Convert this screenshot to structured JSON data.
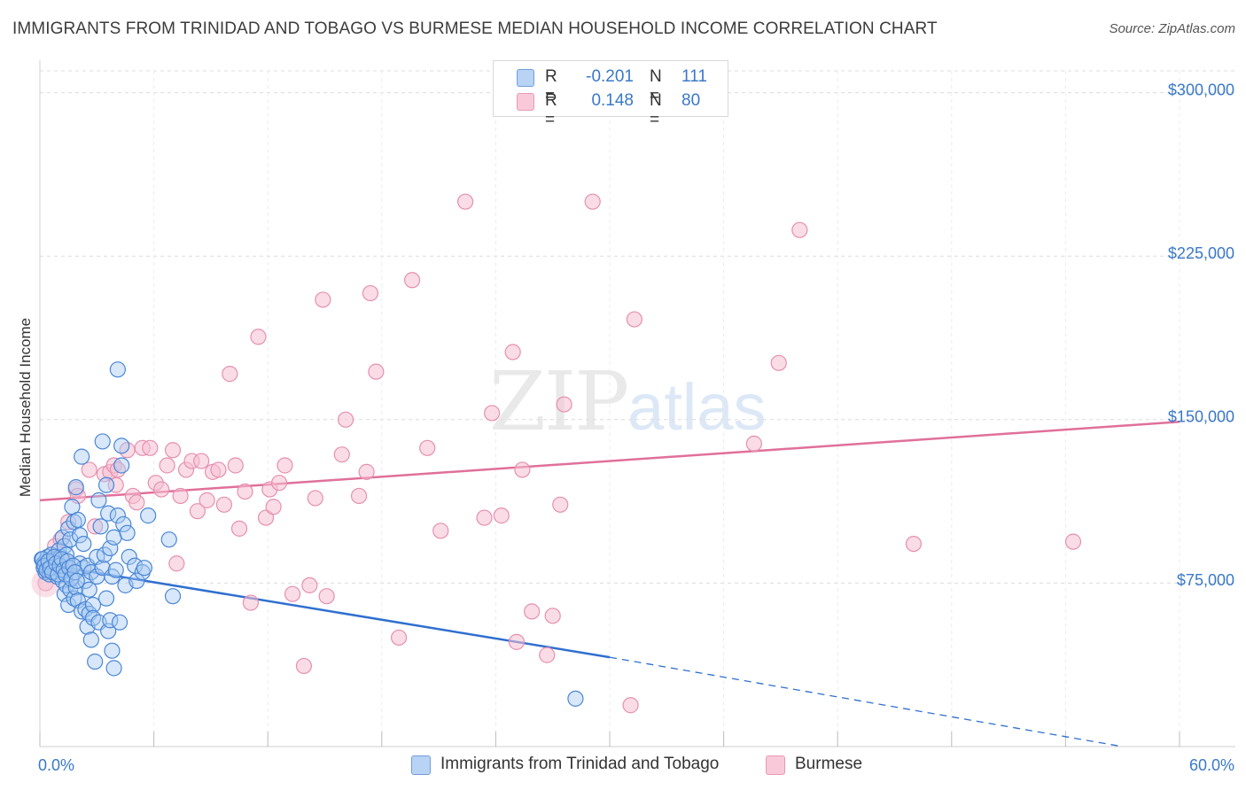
{
  "title": "IMMIGRANTS FROM TRINIDAD AND TOBAGO VS BURMESE MEDIAN HOUSEHOLD INCOME CORRELATION CHART",
  "source": "Source: ZipAtlas.com",
  "watermark": {
    "zip": "ZIP",
    "atlas": "atlas"
  },
  "legend": {
    "rows": [
      {
        "r_label": "R =",
        "r_value": "-0.201",
        "n_label": "N =",
        "n_value": "111"
      },
      {
        "r_label": "R =",
        "r_value": "0.148",
        "n_label": "N =",
        "n_value": "80"
      }
    ]
  },
  "bottom_legend": {
    "series_a": "Immigrants from Trinidad and Tobago",
    "series_b": "Burmese"
  },
  "colors": {
    "series_a_fill": "#a9c9f2",
    "series_a_stroke": "#4a87d6",
    "series_a_line": "#2f6fd0",
    "series_b_fill": "#f6bfd2",
    "series_b_stroke": "#e590b0",
    "series_b_line": "#e0709a",
    "axis_text": "#3a78c9",
    "grid": "#dcdcdc"
  },
  "chart_data": {
    "type": "scatter",
    "xlabel": "",
    "ylabel": "Median Household Income",
    "xlim": [
      0,
      60
    ],
    "ylim": [
      0,
      310000
    ],
    "x_tick_labels": [
      "0.0%",
      "60.0%"
    ],
    "y_ticks": [
      75000,
      150000,
      225000,
      300000
    ],
    "y_tick_labels": [
      "$75,000",
      "$150,000",
      "$225,000",
      "$300,000"
    ],
    "grid": true,
    "legend_position": "top-center",
    "series": [
      {
        "name": "Immigrants from Trinidad and Tobago",
        "r": -0.201,
        "n": 111,
        "trend": {
          "x": [
            0,
            30
          ],
          "y": [
            84000,
            41000
          ],
          "dashed_to": [
            57,
            0
          ]
        },
        "points": [
          [
            0.1,
            86000
          ],
          [
            0.2,
            84000
          ],
          [
            0.2,
            82000
          ],
          [
            0.3,
            85000
          ],
          [
            0.3,
            80000
          ],
          [
            0.4,
            87000
          ],
          [
            0.4,
            83000
          ],
          [
            0.5,
            81000
          ],
          [
            0.5,
            79000
          ],
          [
            0.6,
            88000
          ],
          [
            0.6,
            84000
          ],
          [
            0.7,
            85000
          ],
          [
            0.7,
            82000
          ],
          [
            0.8,
            80000
          ],
          [
            0.8,
            86000
          ],
          [
            0.9,
            83000
          ],
          [
            0.9,
            78000
          ],
          [
            1.0,
            90000
          ],
          [
            1.0,
            84000
          ],
          [
            1.1,
            87000
          ],
          [
            1.1,
            81000
          ],
          [
            1.2,
            96000
          ],
          [
            1.2,
            76000
          ],
          [
            1.3,
            92000
          ],
          [
            1.3,
            70000
          ],
          [
            1.4,
            88000
          ],
          [
            1.4,
            74000
          ],
          [
            1.5,
            100000
          ],
          [
            1.5,
            65000
          ],
          [
            1.6,
            95000
          ],
          [
            1.6,
            72000
          ],
          [
            1.7,
            110000
          ],
          [
            1.7,
            78000
          ],
          [
            1.8,
            103000
          ],
          [
            1.8,
            68000
          ],
          [
            1.9,
            119000
          ],
          [
            1.9,
            73000
          ],
          [
            2.0,
            104000
          ],
          [
            2.0,
            67000
          ],
          [
            2.1,
            97000
          ],
          [
            2.1,
            84000
          ],
          [
            2.2,
            133000
          ],
          [
            2.2,
            62000
          ],
          [
            2.3,
            93000
          ],
          [
            2.3,
            82000
          ],
          [
            2.4,
            76000
          ],
          [
            2.4,
            63000
          ],
          [
            2.5,
            83000
          ],
          [
            2.5,
            55000
          ],
          [
            2.6,
            72000
          ],
          [
            2.6,
            61000
          ],
          [
            2.7,
            80000
          ],
          [
            2.7,
            49000
          ],
          [
            2.8,
            65000
          ],
          [
            2.8,
            59000
          ],
          [
            2.9,
            39000
          ],
          [
            3.0,
            87000
          ],
          [
            3.0,
            78000
          ],
          [
            3.1,
            113000
          ],
          [
            3.1,
            57000
          ],
          [
            3.2,
            101000
          ],
          [
            3.3,
            140000
          ],
          [
            3.3,
            82000
          ],
          [
            3.4,
            88000
          ],
          [
            3.5,
            120000
          ],
          [
            3.5,
            68000
          ],
          [
            3.6,
            107000
          ],
          [
            3.6,
            53000
          ],
          [
            3.7,
            91000
          ],
          [
            3.7,
            58000
          ],
          [
            3.8,
            78000
          ],
          [
            3.8,
            44000
          ],
          [
            3.9,
            96000
          ],
          [
            3.9,
            36000
          ],
          [
            4.0,
            81000
          ],
          [
            4.1,
            106000
          ],
          [
            4.1,
            173000
          ],
          [
            4.2,
            57000
          ],
          [
            4.3,
            129000
          ],
          [
            4.3,
            138000
          ],
          [
            4.4,
            102000
          ],
          [
            4.5,
            74000
          ],
          [
            4.6,
            98000
          ],
          [
            4.7,
            87000
          ],
          [
            5.0,
            83000
          ],
          [
            5.1,
            76000
          ],
          [
            5.4,
            80000
          ],
          [
            5.5,
            82000
          ],
          [
            5.7,
            106000
          ],
          [
            6.8,
            95000
          ],
          [
            7.0,
            69000
          ],
          [
            28.2,
            22000
          ],
          [
            0.15,
            86000
          ],
          [
            0.25,
            83000
          ],
          [
            0.35,
            81000
          ],
          [
            0.45,
            85000
          ],
          [
            0.55,
            82000
          ],
          [
            0.65,
            80000
          ],
          [
            0.75,
            87000
          ],
          [
            0.85,
            84000
          ],
          [
            0.95,
            79000
          ],
          [
            1.05,
            83000
          ],
          [
            1.15,
            86000
          ],
          [
            1.25,
            81000
          ],
          [
            1.35,
            79000
          ],
          [
            1.45,
            85000
          ],
          [
            1.55,
            82000
          ],
          [
            1.65,
            77000
          ],
          [
            1.75,
            83000
          ],
          [
            1.85,
            80000
          ],
          [
            1.95,
            76000
          ]
        ]
      },
      {
        "name": "Burmese",
        "r": 0.148,
        "n": 80,
        "trend": {
          "x": [
            0,
            60
          ],
          "y": [
            113000,
            149000
          ]
        },
        "points": [
          [
            0.3,
            75000
          ],
          [
            0.6,
            80000
          ],
          [
            0.8,
            92000
          ],
          [
            1.1,
            95000
          ],
          [
            1.3,
            85000
          ],
          [
            1.5,
            103000
          ],
          [
            1.9,
            118000
          ],
          [
            2.0,
            115000
          ],
          [
            2.6,
            127000
          ],
          [
            2.9,
            101000
          ],
          [
            3.4,
            125000
          ],
          [
            3.7,
            126000
          ],
          [
            3.9,
            129000
          ],
          [
            4.0,
            120000
          ],
          [
            4.1,
            127000
          ],
          [
            4.6,
            136000
          ],
          [
            4.9,
            115000
          ],
          [
            5.1,
            112000
          ],
          [
            5.4,
            137000
          ],
          [
            5.8,
            137000
          ],
          [
            6.1,
            121000
          ],
          [
            6.4,
            118000
          ],
          [
            6.7,
            129000
          ],
          [
            7.0,
            136000
          ],
          [
            7.2,
            84000
          ],
          [
            7.4,
            115000
          ],
          [
            7.7,
            127000
          ],
          [
            8.0,
            131000
          ],
          [
            8.3,
            108000
          ],
          [
            8.5,
            131000
          ],
          [
            8.8,
            113000
          ],
          [
            9.1,
            126000
          ],
          [
            9.4,
            127000
          ],
          [
            9.7,
            111000
          ],
          [
            10.0,
            171000
          ],
          [
            10.3,
            129000
          ],
          [
            10.5,
            100000
          ],
          [
            10.8,
            117000
          ],
          [
            11.1,
            66000
          ],
          [
            11.5,
            188000
          ],
          [
            11.9,
            105000
          ],
          [
            12.1,
            118000
          ],
          [
            12.3,
            110000
          ],
          [
            12.6,
            121000
          ],
          [
            12.9,
            129000
          ],
          [
            13.3,
            70000
          ],
          [
            13.9,
            37000
          ],
          [
            14.2,
            74000
          ],
          [
            14.5,
            114000
          ],
          [
            15.1,
            69000
          ],
          [
            14.9,
            205000
          ],
          [
            15.9,
            134000
          ],
          [
            16.1,
            150000
          ],
          [
            16.8,
            115000
          ],
          [
            17.2,
            126000
          ],
          [
            17.4,
            208000
          ],
          [
            17.7,
            172000
          ],
          [
            18.9,
            50000
          ],
          [
            19.6,
            214000
          ],
          [
            20.4,
            137000
          ],
          [
            21.1,
            99000
          ],
          [
            22.4,
            250000
          ],
          [
            23.4,
            105000
          ],
          [
            23.8,
            153000
          ],
          [
            24.3,
            106000
          ],
          [
            24.9,
            181000
          ],
          [
            25.1,
            48000
          ],
          [
            25.4,
            127000
          ],
          [
            25.9,
            62000
          ],
          [
            26.7,
            42000
          ],
          [
            27.0,
            60000
          ],
          [
            27.4,
            111000
          ],
          [
            27.6,
            157000
          ],
          [
            29.1,
            250000
          ],
          [
            31.1,
            19000
          ],
          [
            31.3,
            196000
          ],
          [
            37.6,
            139000
          ],
          [
            38.9,
            176000
          ],
          [
            40.0,
            237000
          ],
          [
            46.0,
            93000
          ],
          [
            54.4,
            94000
          ]
        ]
      }
    ]
  }
}
